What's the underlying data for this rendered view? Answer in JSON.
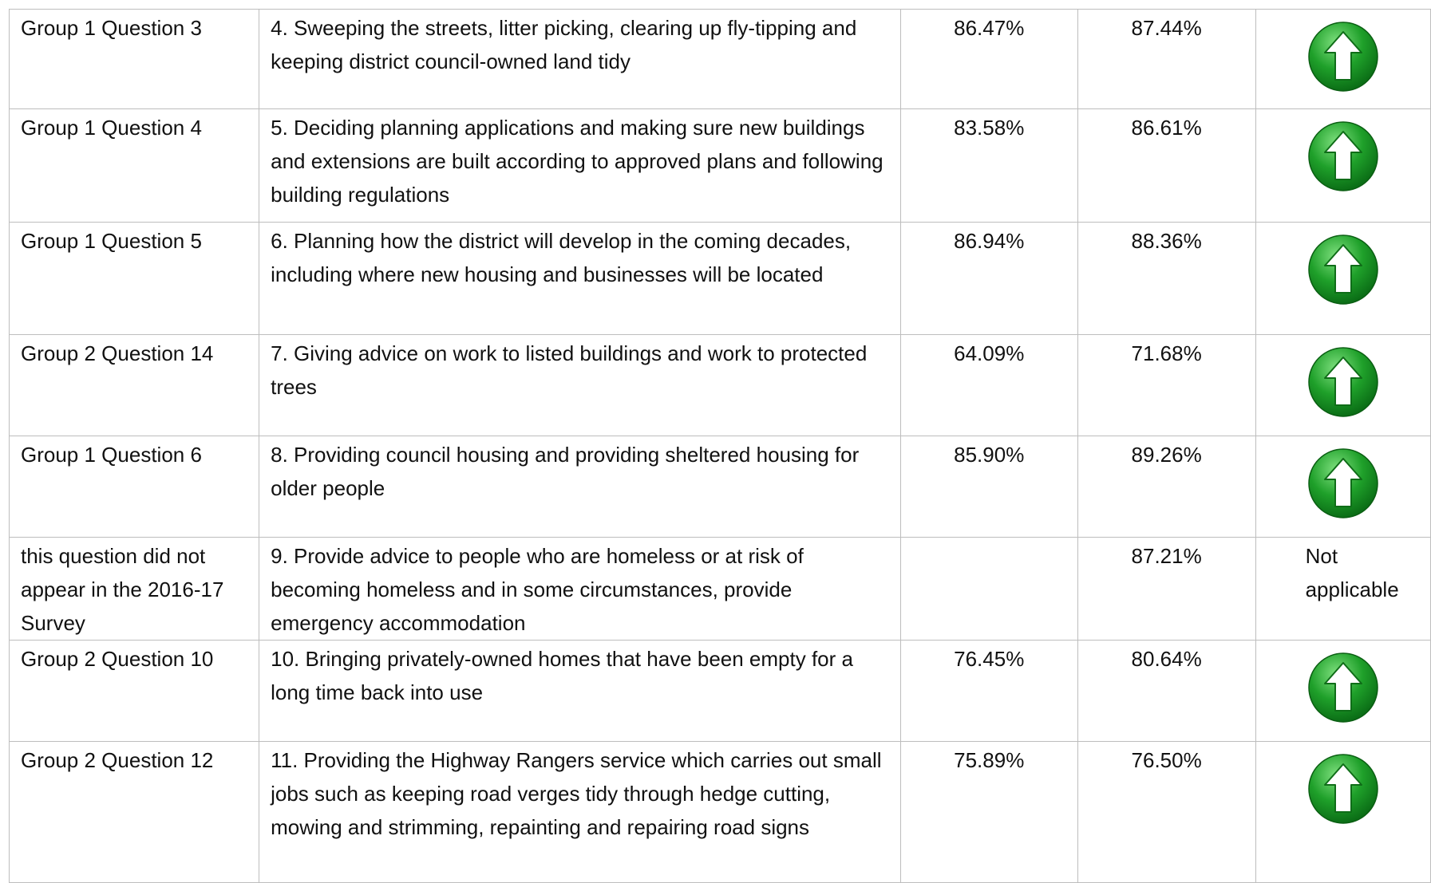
{
  "table": {
    "rows": [
      [
        "Group 1 Question 3",
        "4. Sweeping the streets, litter picking, clearing up fly-tipping and keeping district council-owned land tidy",
        "86.47%",
        "87.44%",
        null
      ],
      [
        "Group 1 Question 4",
        "5. Deciding planning applications and making sure new buildings and extensions are built according to approved plans and following building regulations",
        "83.58%",
        "86.61%",
        null
      ],
      [
        "Group 1 Question 5",
        "6. Planning how the district will develop in the coming decades, including where new housing and businesses will be located",
        "86.94%",
        "88.36%",
        null
      ],
      [
        "Group 2 Question 14",
        "7. Giving advice on work to listed buildings and work to protected trees",
        "64.09%",
        "71.68%",
        null
      ],
      [
        "Group 1 Question 6",
        "8. Providing council housing and providing sheltered housing for older people",
        "85.90%",
        "89.26%",
        null
      ],
      [
        "this question did not appear in the 2016-17 Survey",
        "9. Provide advice to people who are homeless or at risk of becoming homeless and in some circumstances, provide emergency accommodation",
        null,
        "87.21%",
        "Not applicable"
      ],
      [
        "Group 2 Question 10",
        "10. Bringing privately-owned homes that have been empty for a long time back into use",
        "76.45%",
        "80.64%",
        null
      ],
      [
        "Group 2 Question 12",
        "11. Providing the Highway Rangers service which carries out small jobs such as keeping road verges tidy through hedge cutting, mowing and strimming, repainting and repairing road signs",
        "75.89%",
        "76.50%",
        null
      ]
    ]
  }
}
